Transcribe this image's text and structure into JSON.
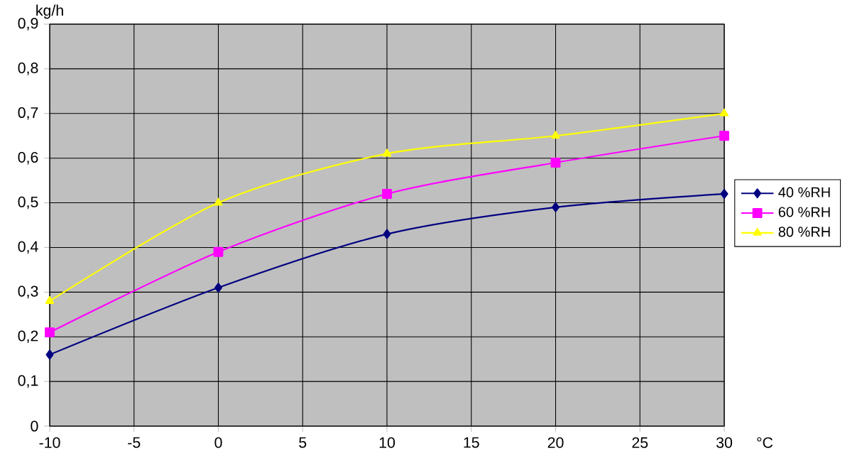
{
  "chart_data": {
    "type": "line",
    "xlabel": "°C",
    "ylabel": "kg/h",
    "x": [
      -10,
      0,
      10,
      20,
      30
    ],
    "series": [
      {
        "name": "40 %RH",
        "color": "#000080",
        "marker": "diamond",
        "values": [
          0.16,
          0.31,
          0.43,
          0.49,
          0.52
        ]
      },
      {
        "name": "60 %RH",
        "color": "#ff00ff",
        "marker": "square",
        "values": [
          0.21,
          0.39,
          0.52,
          0.59,
          0.65
        ]
      },
      {
        "name": "80 %RH",
        "color": "#ffff00",
        "marker": "triangle",
        "values": [
          0.28,
          0.5,
          0.61,
          0.65,
          0.7
        ]
      }
    ],
    "xlim": [
      -10,
      30
    ],
    "xticks": [
      -10,
      -5,
      0,
      5,
      10,
      15,
      20,
      25,
      30
    ],
    "ylim": [
      0,
      0.9
    ],
    "yticks": [
      0,
      {
        "value": 0.1,
        "label": "0,1"
      },
      {
        "value": 0.2,
        "label": "0,2"
      },
      {
        "value": 0.3,
        "label": "0,3"
      },
      {
        "value": 0.4,
        "label": "0,4"
      },
      {
        "value": 0.5,
        "label": "0,5"
      },
      {
        "value": 0.6,
        "label": "0,6"
      },
      {
        "value": 0.7,
        "label": "0,7"
      },
      {
        "value": 0.8,
        "label": "0,8"
      },
      {
        "value": 0.9,
        "label": "0,9"
      }
    ],
    "grid": true,
    "legend": "right"
  }
}
